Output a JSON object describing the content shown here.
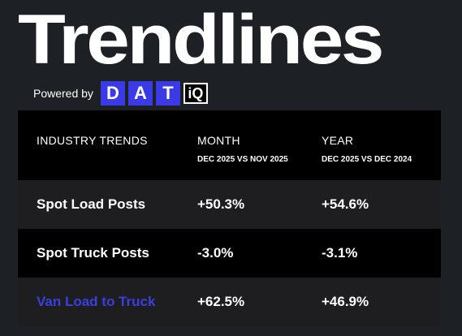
{
  "header": {
    "title": "Trendlines",
    "powered_by": "Powered by",
    "logo_letters": [
      "D",
      "A",
      "T"
    ],
    "logo_iq": "iQ"
  },
  "table": {
    "columns": [
      {
        "label": "INDUSTRY TRENDS",
        "sub": ""
      },
      {
        "label": "MONTH",
        "sub": "DEC 2025 VS NOV 2025"
      },
      {
        "label": "YEAR",
        "sub": "DEC 2025 VS DEC 2024"
      }
    ],
    "rows": [
      {
        "metric": "Spot Load Posts",
        "month": "+50.3%",
        "year": "+54.6%"
      },
      {
        "metric": "Spot Truck Posts",
        "month": "-3.0%",
        "year": "-3.1%"
      },
      {
        "metric": "Van Load to Truck",
        "month": "+62.5%",
        "year": "+46.9%"
      }
    ]
  },
  "colors": {
    "background": "#1d2126",
    "header_row": "#000000",
    "row_odd": "#1e1e20",
    "row_even": "#000000",
    "logo_blue": "#3a3ae6",
    "link_blue": "#3a3fe0"
  }
}
